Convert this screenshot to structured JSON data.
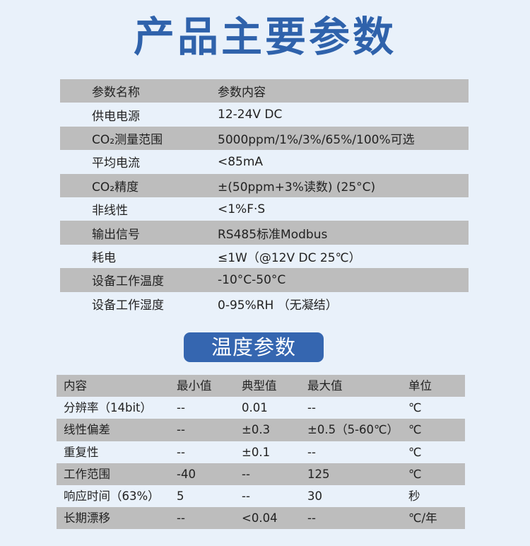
{
  "title": "产品主要参数",
  "main_params": {
    "header": [
      "参数名称",
      "参数内容"
    ],
    "rows": [
      [
        "供电电源",
        "12-24V DC"
      ],
      [
        "CO₂测量范围",
        "5000ppm/1%/3%/65%/100%可选"
      ],
      [
        "平均电流",
        "<85mA"
      ],
      [
        "CO₂精度",
        "±(50ppm+3%读数) (25°C)"
      ],
      [
        "非线性",
        "<1%F·S"
      ],
      [
        "输出信号",
        "RS485标准Modbus"
      ],
      [
        "耗电",
        "≤1W（@12V DC 25℃）"
      ],
      [
        "设备工作温度",
        "-10°C-50°C"
      ],
      [
        "设备工作湿度",
        "0-95%RH （无凝结）"
      ]
    ]
  },
  "temp_section": {
    "title": "温度参数",
    "header": [
      "内容",
      "最小值",
      "典型值",
      "最大值",
      "单位"
    ],
    "rows": [
      [
        "分辨率（14bit）",
        "--",
        "0.01",
        "--",
        "℃"
      ],
      [
        "线性偏差",
        "--",
        "±0.3",
        "±0.5（5-60℃）",
        "℃"
      ],
      [
        "重复性",
        "--",
        "±0.1",
        "--",
        "℃"
      ],
      [
        "工作范围",
        "-40",
        "--",
        "125",
        "℃"
      ],
      [
        "响应时间（63%）",
        "5",
        "--",
        "30",
        "秒"
      ],
      [
        "长期漂移",
        "--",
        "<0.04",
        "--",
        "℃/年"
      ]
    ]
  },
  "colors": {
    "title": "#2f62ab",
    "badge": "#3566b0",
    "row_gray": "#bdbdbd",
    "background": "#e9f1fa"
  }
}
